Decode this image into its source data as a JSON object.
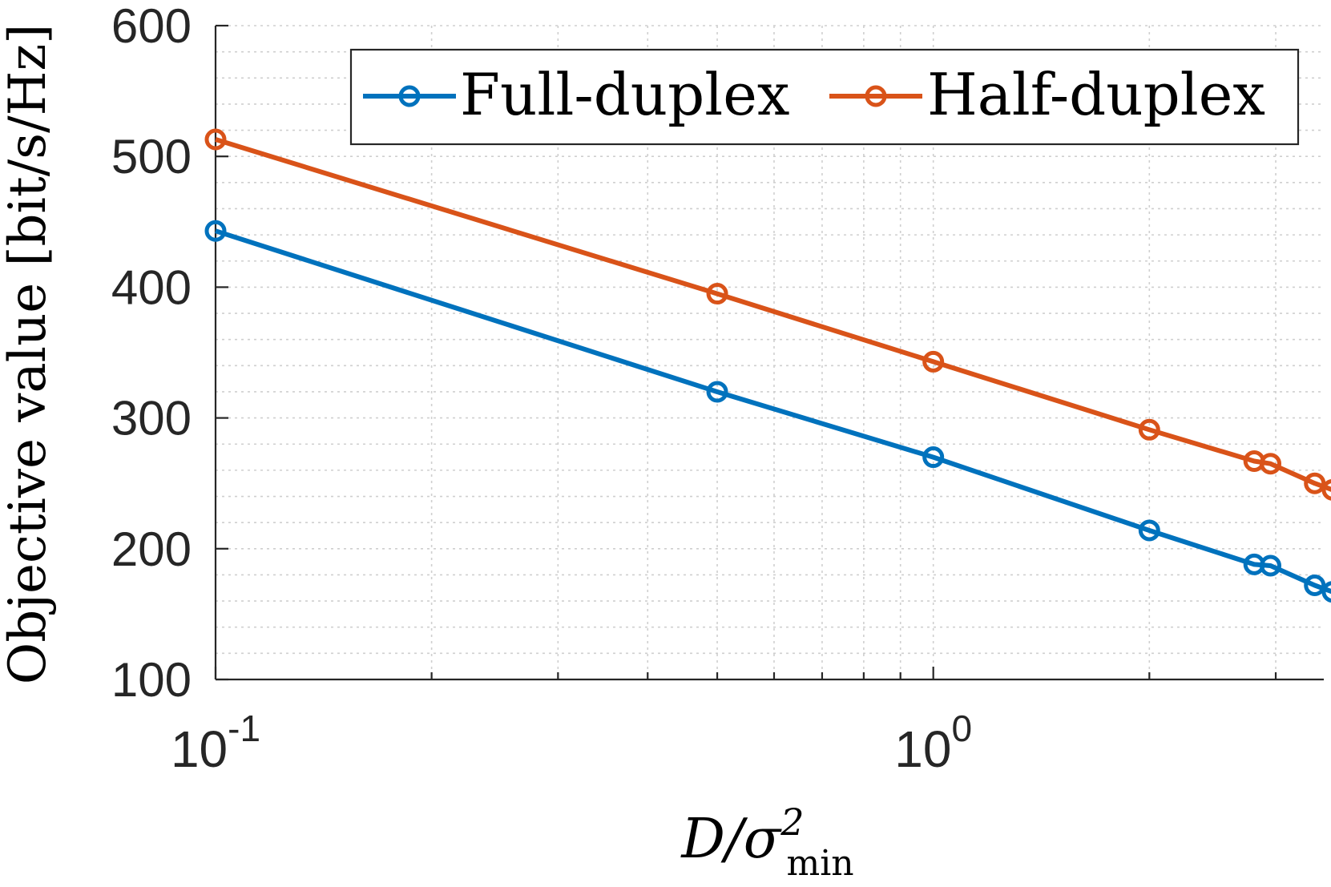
{
  "chart_data": {
    "type": "line",
    "xscale": "log",
    "xlim": [
      0.1,
      3.5
    ],
    "ylim": [
      100,
      600
    ],
    "grid": true,
    "legend_position": "top-right",
    "xlabel": {
      "main": "D/σ",
      "sup": "2",
      "sub": "min"
    },
    "ylabel": "Objective value [bit/s/Hz]",
    "y_ticks": [
      100,
      200,
      300,
      400,
      500,
      600
    ],
    "x_ticks": [
      {
        "value": 0.1,
        "base": "10",
        "exp": "-1"
      },
      {
        "value": 1,
        "base": "10",
        "exp": "0"
      }
    ],
    "x": [
      0.1,
      0.5,
      1.0,
      2.0,
      2.8,
      2.95,
      3.4,
      3.6
    ],
    "series": [
      {
        "name": "Full-duplex",
        "color": "#0072BD",
        "values": [
          443,
          320,
          270,
          214,
          188,
          187,
          172,
          167
        ]
      },
      {
        "name": "Half-duplex",
        "color": "#D95319",
        "values": [
          513,
          395,
          343,
          291,
          267,
          265,
          250,
          245
        ]
      }
    ]
  }
}
